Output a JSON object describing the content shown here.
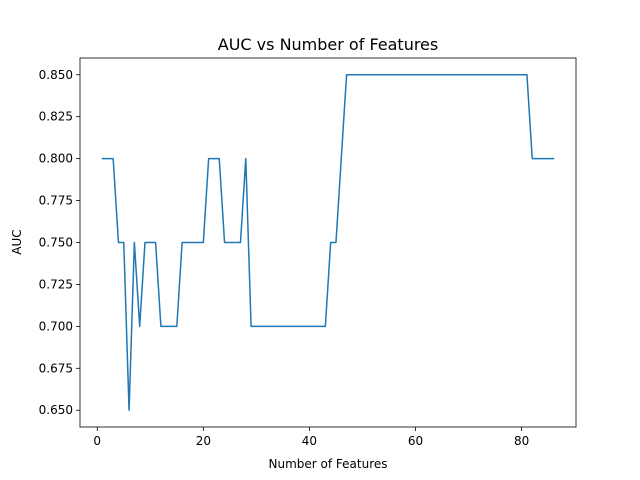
{
  "chart_data": {
    "type": "line",
    "title": "AUC vs Number of Features",
    "xlabel": "Number of Features",
    "ylabel": "AUC",
    "xlim": [
      -3.25,
      90.25
    ],
    "ylim": [
      0.64,
      0.86
    ],
    "xticks": [
      0,
      20,
      40,
      60,
      80
    ],
    "xtick_labels": [
      "0",
      "20",
      "40",
      "60",
      "80"
    ],
    "yticks": [
      0.65,
      0.675,
      0.7,
      0.725,
      0.75,
      0.775,
      0.8,
      0.825,
      0.85
    ],
    "ytick_labels": [
      "0.650",
      "0.675",
      "0.700",
      "0.725",
      "0.750",
      "0.775",
      "0.800",
      "0.825",
      "0.850"
    ],
    "grid": false,
    "line_color": "#1f77b4",
    "x": [
      1,
      2,
      3,
      4,
      5,
      6,
      7,
      8,
      9,
      10,
      11,
      12,
      13,
      14,
      15,
      16,
      17,
      18,
      19,
      20,
      21,
      22,
      23,
      24,
      25,
      26,
      27,
      28,
      29,
      30,
      31,
      32,
      33,
      34,
      35,
      36,
      37,
      38,
      39,
      40,
      41,
      42,
      43,
      44,
      45,
      46,
      47,
      48,
      49,
      50,
      51,
      52,
      53,
      54,
      55,
      56,
      57,
      58,
      59,
      60,
      61,
      62,
      63,
      64,
      65,
      66,
      67,
      68,
      69,
      70,
      71,
      72,
      73,
      74,
      75,
      76,
      77,
      78,
      79,
      80,
      81,
      82,
      83,
      84,
      85,
      86
    ],
    "y": [
      0.8,
      0.8,
      0.8,
      0.75,
      0.75,
      0.65,
      0.75,
      0.7,
      0.75,
      0.75,
      0.75,
      0.7,
      0.7,
      0.7,
      0.7,
      0.75,
      0.75,
      0.75,
      0.75,
      0.75,
      0.8,
      0.8,
      0.8,
      0.75,
      0.75,
      0.75,
      0.75,
      0.8,
      0.7,
      0.7,
      0.7,
      0.7,
      0.7,
      0.7,
      0.7,
      0.7,
      0.7,
      0.7,
      0.7,
      0.7,
      0.7,
      0.7,
      0.7,
      0.75,
      0.75,
      0.8,
      0.85,
      0.85,
      0.85,
      0.85,
      0.85,
      0.85,
      0.85,
      0.85,
      0.85,
      0.85,
      0.85,
      0.85,
      0.85,
      0.85,
      0.85,
      0.85,
      0.85,
      0.85,
      0.85,
      0.85,
      0.85,
      0.85,
      0.85,
      0.85,
      0.85,
      0.85,
      0.85,
      0.85,
      0.85,
      0.85,
      0.85,
      0.85,
      0.85,
      0.85,
      0.85,
      0.8,
      0.8,
      0.8,
      0.8,
      0.8
    ]
  }
}
